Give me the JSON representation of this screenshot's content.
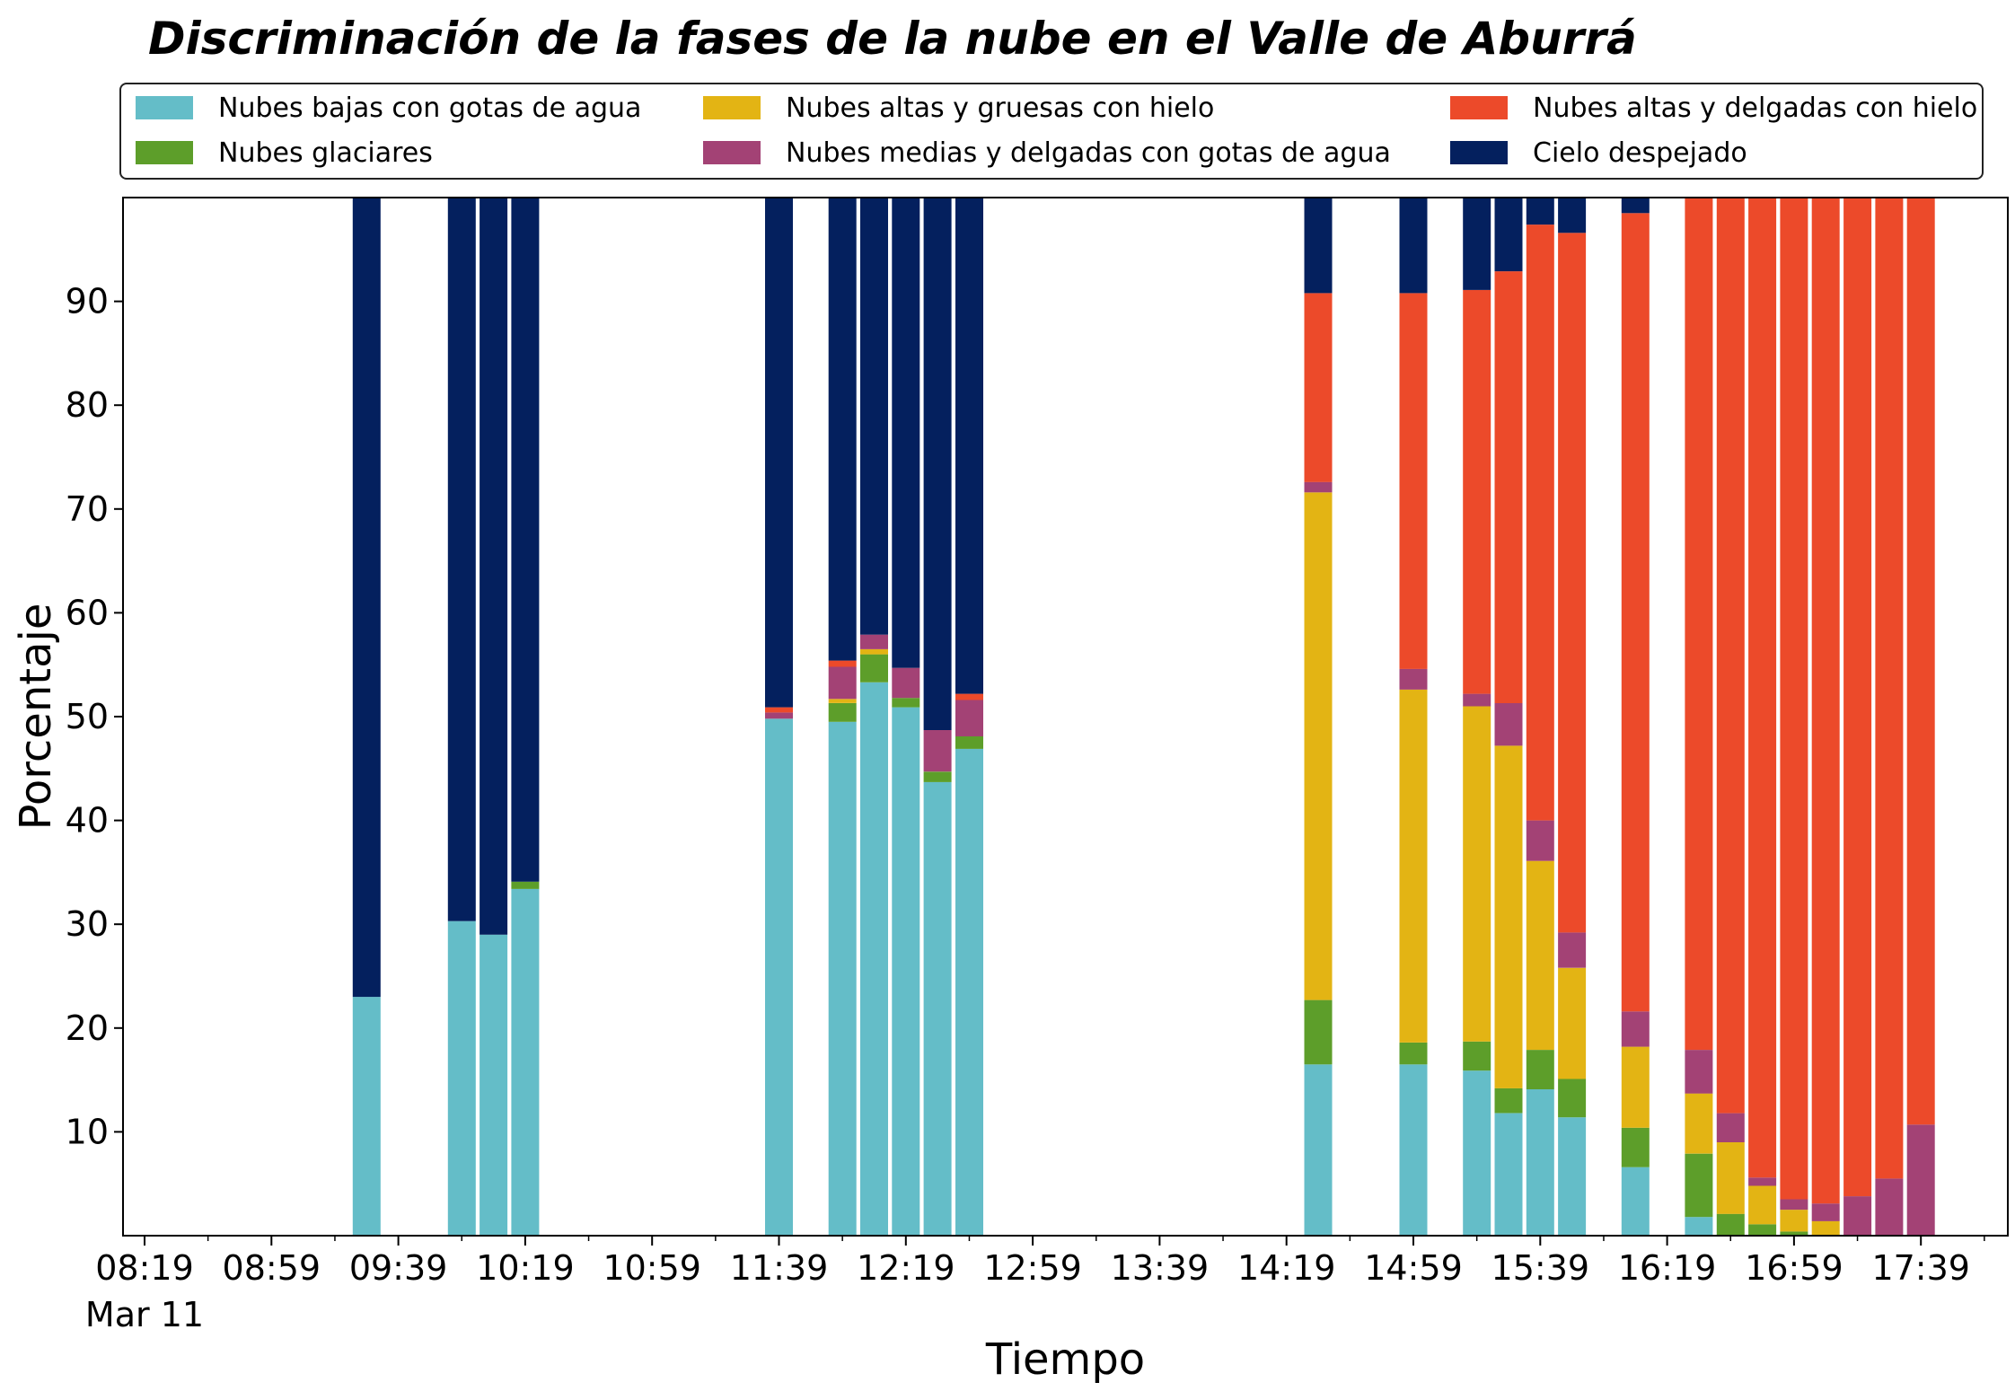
{
  "chart_data": {
    "type": "bar",
    "stacked": true,
    "title": "Discriminación de la fases de la nube en el Valle de Aburrá",
    "xlabel": "Tiempo",
    "ylabel": "Porcentaje",
    "ylim": [
      0,
      100
    ],
    "yticks": [
      10,
      20,
      30,
      40,
      50,
      60,
      70,
      80,
      90
    ],
    "x_tick_labels": [
      "08:19",
      "08:59",
      "09:39",
      "10:19",
      "10:59",
      "11:39",
      "12:19",
      "12:59",
      "13:39",
      "14:19",
      "14:59",
      "15:39",
      "16:19",
      "16:59",
      "17:39"
    ],
    "x_date_label": "Mar 11",
    "grid": false,
    "legend_position": "top",
    "categories": [
      "09:29",
      "09:59",
      "10:09",
      "10:19",
      "11:39",
      "11:59",
      "12:09",
      "12:19",
      "12:29",
      "12:39",
      "14:29",
      "14:59",
      "15:19",
      "15:29",
      "15:39",
      "15:49",
      "16:09",
      "16:29",
      "16:39",
      "16:49",
      "16:59",
      "17:09",
      "17:19",
      "17:29",
      "17:39"
    ],
    "series": [
      {
        "name": "Nubes bajas con gotas de agua",
        "color": "#64BDC8",
        "values": [
          23.0,
          30.3,
          29.0,
          33.4,
          49.8,
          49.5,
          53.3,
          50.9,
          43.7,
          46.9,
          16.5,
          16.5,
          15.9,
          11.8,
          14.1,
          11.4,
          6.6,
          1.8,
          0,
          0,
          0,
          0,
          0,
          0,
          0
        ]
      },
      {
        "name": "Nubes glaciares",
        "color": "#5D9E2A",
        "values": [
          0,
          0,
          0,
          0.7,
          0,
          1.8,
          2.7,
          0.9,
          1.0,
          1.2,
          6.2,
          2.1,
          2.8,
          2.4,
          3.8,
          3.7,
          3.8,
          6.1,
          2.1,
          1.1,
          0.4,
          0,
          0,
          0,
          0
        ]
      },
      {
        "name": "Nubes altas y gruesas con hielo",
        "color": "#E3B414",
        "values": [
          0,
          0,
          0,
          0,
          0,
          0.4,
          0.5,
          0,
          0,
          0,
          48.9,
          34.0,
          32.3,
          33.0,
          18.2,
          10.7,
          7.8,
          5.8,
          6.9,
          3.7,
          2.1,
          1.4,
          0,
          0,
          0
        ]
      },
      {
        "name": "Nubes medias y delgadas con gotas de agua",
        "color": "#A34275",
        "values": [
          0,
          0,
          0,
          0,
          0.6,
          3.1,
          1.4,
          2.9,
          4.0,
          3.5,
          1.0,
          2.0,
          1.2,
          4.1,
          3.9,
          3.4,
          3.4,
          4.2,
          2.8,
          0.8,
          1.0,
          1.7,
          3.8,
          5.5,
          10.7
        ]
      },
      {
        "name": "Nubes altas y delgadas con hielo",
        "color": "#EC4A2A",
        "values": [
          0,
          0,
          0,
          0,
          0.5,
          0.6,
          0,
          0,
          0,
          0.6,
          18.2,
          36.2,
          38.9,
          41.6,
          57.4,
          67.4,
          76.9,
          82.1,
          88.2,
          94.4,
          96.5,
          96.9,
          96.2,
          94.5,
          89.3
        ]
      },
      {
        "name": "Cielo despejado",
        "color": "#04205E",
        "values": [
          77.0,
          69.7,
          71.0,
          65.9,
          49.1,
          44.6,
          42.1,
          45.3,
          51.3,
          47.8,
          9.2,
          9.2,
          8.9,
          7.1,
          2.6,
          3.4,
          1.5,
          0,
          0,
          0,
          0,
          0,
          0,
          0,
          0
        ]
      }
    ]
  }
}
